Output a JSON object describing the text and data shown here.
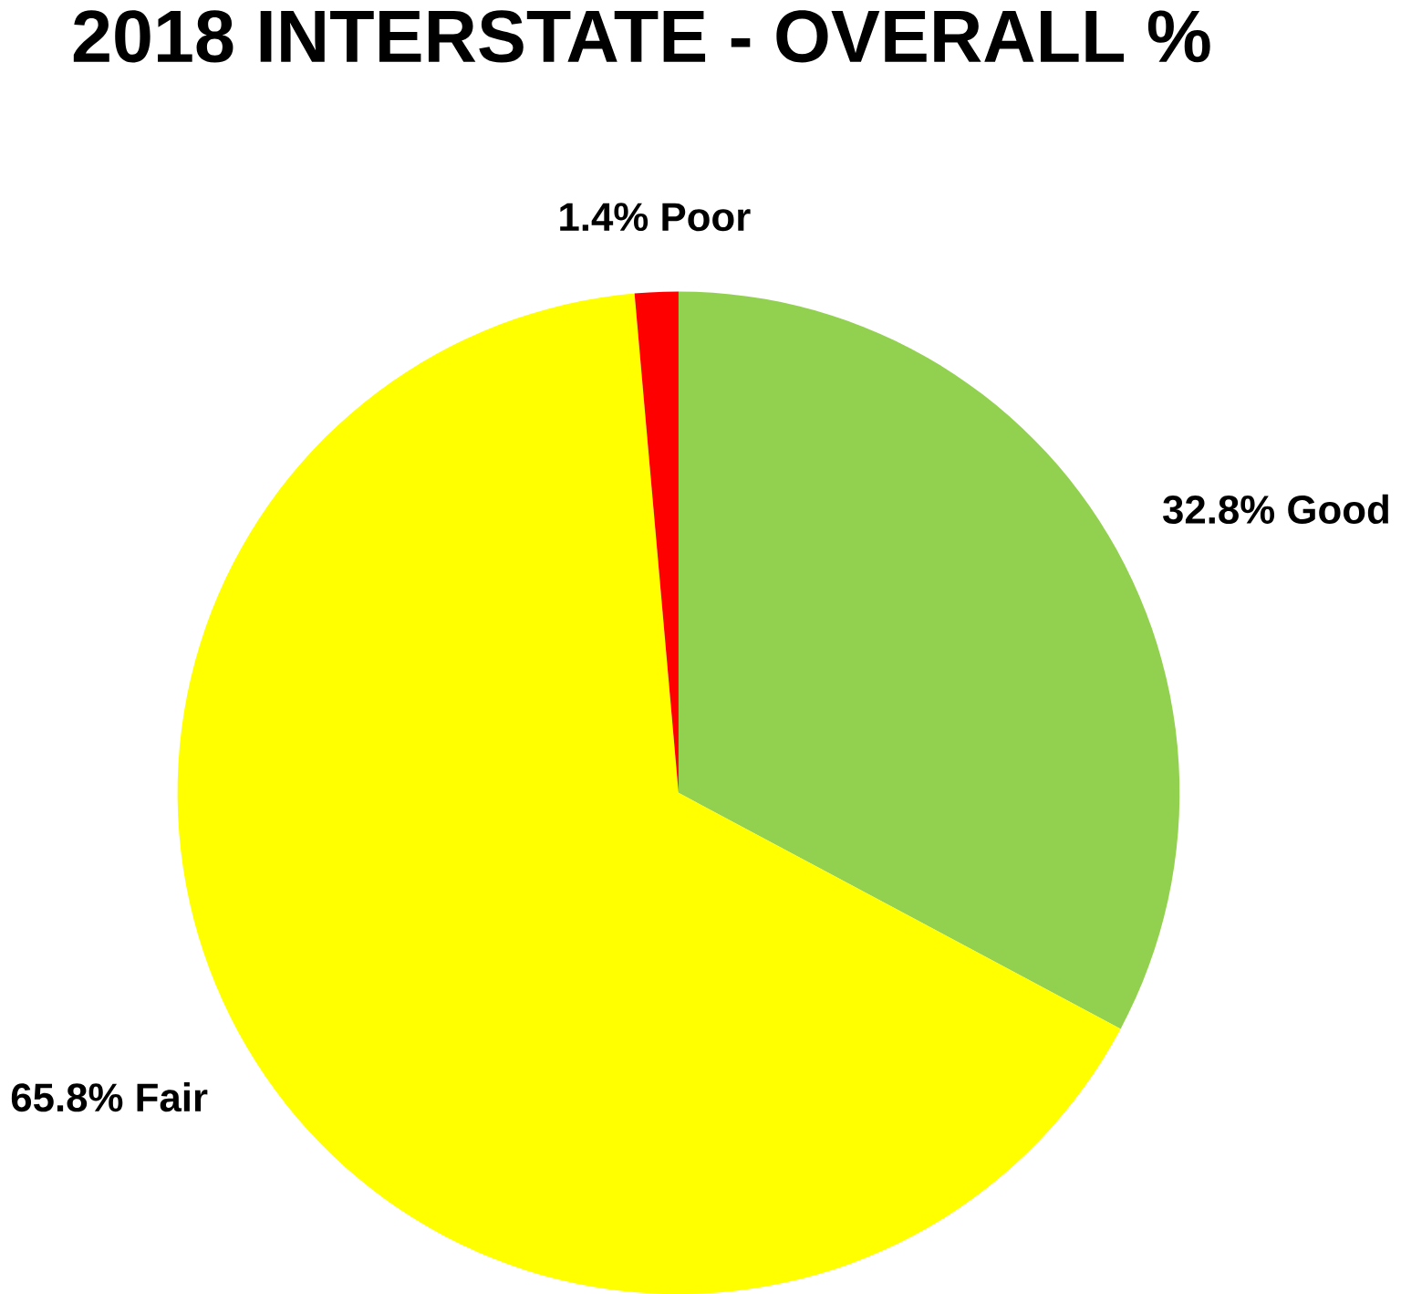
{
  "chart_data": {
    "type": "pie",
    "title": "2018 INTERSTATE - OVERALL %",
    "categories": [
      "Good",
      "Fair",
      "Poor"
    ],
    "values": [
      32.8,
      65.8,
      1.4
    ],
    "value_labels": [
      "32.8%",
      "65.8%",
      "1.4%"
    ],
    "colors": [
      "#92d050",
      "#ffff00",
      "#ff0000"
    ]
  }
}
